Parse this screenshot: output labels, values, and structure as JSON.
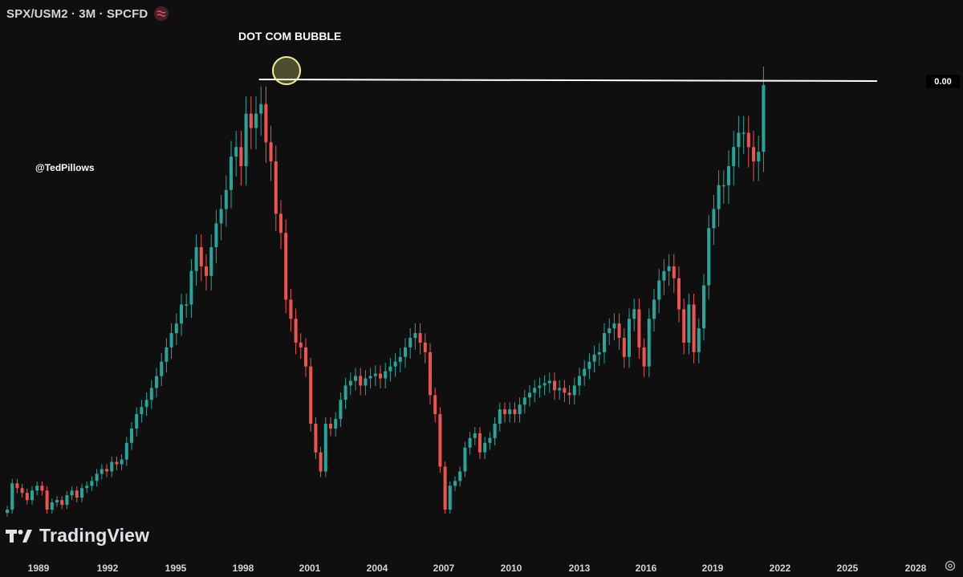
{
  "header": {
    "title": "SPX/USM2 · 3M · SPCFD",
    "flag_icon": "wave-icon",
    "flag_color": "#4a1f2c"
  },
  "annotation": {
    "text": "DOT COM BUBBLE"
  },
  "watermark": {
    "handle": "@TedPillows",
    "brand": "TradingView",
    "brand_icon": "tradingview-logo-icon"
  },
  "price_label": "0.00",
  "settings_icon": "gear-icon",
  "colors": {
    "up": "#26a69a",
    "down": "#ef5350",
    "background": "#0f0f0f",
    "highlight": "#f6f08c",
    "level_line": "#ffffff"
  },
  "chart_data": {
    "type": "candlestick",
    "title": "SPX/USM2",
    "interval": "3M",
    "x_axis_ticks": [
      "1989",
      "1992",
      "1995",
      "1998",
      "2001",
      "2004",
      "2007",
      "2010",
      "2013",
      "2016",
      "2019",
      "2022",
      "2025",
      "2028"
    ],
    "x_range": [
      1988.5,
      2029.5
    ],
    "y_range_approx": [
      0.1,
      1.0
    ],
    "y_scale": "linear",
    "grid": false,
    "annotations": [
      {
        "text": "DOT COM BUBBLE",
        "type": "circle",
        "at": {
          "x": 2000.0,
          "y": 0.97
        }
      },
      {
        "type": "horizontal_ray",
        "from_x": 2000.0,
        "to_x": 2026.0,
        "y": 0.97
      }
    ],
    "candles_close_approx": [
      0.1,
      0.155,
      0.145,
      0.135,
      0.12,
      0.14,
      0.15,
      0.14,
      0.1,
      0.115,
      0.12,
      0.11,
      0.13,
      0.14,
      0.125,
      0.145,
      0.15,
      0.16,
      0.175,
      0.185,
      0.18,
      0.2,
      0.195,
      0.205,
      0.24,
      0.27,
      0.3,
      0.315,
      0.33,
      0.355,
      0.38,
      0.41,
      0.44,
      0.47,
      0.49,
      0.53,
      0.53,
      0.6,
      0.65,
      0.61,
      0.59,
      0.65,
      0.7,
      0.73,
      0.77,
      0.84,
      0.86,
      0.82,
      0.93,
      0.9,
      0.93,
      0.95,
      0.87,
      0.83,
      0.72,
      0.68,
      0.54,
      0.5,
      0.45,
      0.44,
      0.4,
      0.28,
      0.22,
      0.18,
      0.28,
      0.27,
      0.29,
      0.33,
      0.36,
      0.37,
      0.38,
      0.36,
      0.375,
      0.38,
      0.385,
      0.375,
      0.39,
      0.4,
      0.41,
      0.42,
      0.44,
      0.46,
      0.47,
      0.45,
      0.43,
      0.34,
      0.3,
      0.19,
      0.1,
      0.15,
      0.16,
      0.18,
      0.23,
      0.25,
      0.26,
      0.22,
      0.24,
      0.25,
      0.28,
      0.31,
      0.3,
      0.31,
      0.3,
      0.32,
      0.335,
      0.345,
      0.355,
      0.36,
      0.365,
      0.37,
      0.35,
      0.355,
      0.345,
      0.34,
      0.36,
      0.38,
      0.395,
      0.41,
      0.425,
      0.43,
      0.47,
      0.48,
      0.49,
      0.46,
      0.42,
      0.5,
      0.52,
      0.44,
      0.4,
      0.5,
      0.54,
      0.58,
      0.6,
      0.61,
      0.585,
      0.52,
      0.45,
      0.53,
      0.43,
      0.48,
      0.57,
      0.69,
      0.73,
      0.78,
      0.78,
      0.82,
      0.86,
      0.89,
      0.89,
      0.86,
      0.83,
      0.85,
      0.99
    ]
  }
}
